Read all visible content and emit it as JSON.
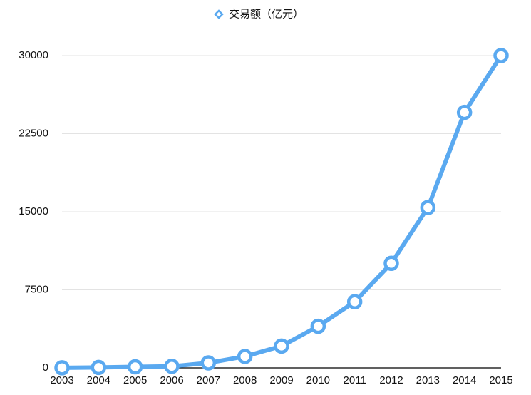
{
  "chart_data": {
    "type": "line",
    "categories": [
      "2003",
      "2004",
      "2005",
      "2006",
      "2007",
      "2008",
      "2009",
      "2010",
      "2011",
      "2012",
      "2013",
      "2014",
      "2015"
    ],
    "series": [
      {
        "name": "交易额（亿元）",
        "color": "#5aa9f0",
        "values": [
          10,
          40,
          100,
          150,
          480,
          1100,
          2100,
          4000,
          6350,
          10050,
          15400,
          24550,
          30000
        ]
      }
    ],
    "ylim": [
      0,
      30000
    ],
    "yticks": [
      0,
      7500,
      15000,
      22500,
      30000
    ],
    "grid": true,
    "legend": "top"
  }
}
